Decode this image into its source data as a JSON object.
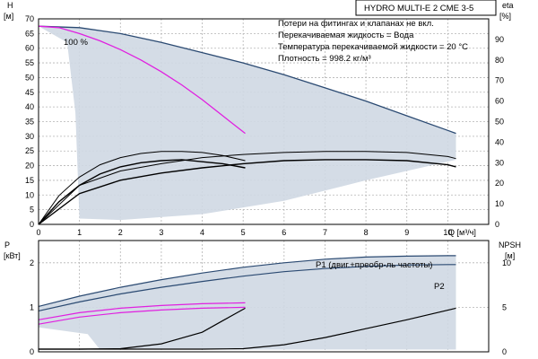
{
  "chart_data": [
    {
      "type": "line",
      "title": "HYDRO MULTI-E 2 CME 3-5",
      "notes": [
        "Потери на фитингах и клапанах не вкл.",
        "Перекачиваемая жидкость = Вода",
        "Температура перекачиваемой жидкости = 20 °C",
        "Плотность = 998.2 кг/м³"
      ],
      "xlabel": "Q [м³/ч]",
      "xlim": [
        0,
        11
      ],
      "xticks": [
        0,
        1,
        2,
        3,
        4,
        5,
        6,
        7,
        8,
        9,
        10
      ],
      "ylabel_left": [
        "H",
        "[м]"
      ],
      "ylim_left": [
        0,
        70
      ],
      "yticks_left": [
        0,
        5,
        10,
        15,
        20,
        25,
        30,
        35,
        40,
        45,
        50,
        55,
        60,
        65,
        70
      ],
      "ylabel_right": [
        "eta",
        "[%]"
      ],
      "ylim_right": [
        0,
        100
      ],
      "yticks_right": [
        0,
        10,
        20,
        30,
        40,
        50,
        60,
        70,
        80,
        90
      ],
      "grid": true,
      "label_100": "100 %",
      "colors": {
        "envelope_fill": "#cfd8e3",
        "head_max": "#2b4a72",
        "head_100": "#e020e0",
        "efficiency": "#000000"
      },
      "series": [
        {
          "name": "",
          "role": "head-max",
          "x": [
            0,
            1,
            2,
            3,
            4,
            5,
            6,
            7,
            8,
            9,
            10,
            10.2
          ],
          "y": [
            67.5,
            67,
            65,
            62,
            58.5,
            55,
            51,
            46.5,
            42,
            37,
            32,
            31
          ]
        },
        {
          "name": "100 %",
          "role": "head-100",
          "x": [
            0,
            0.5,
            1,
            1.5,
            2,
            2.5,
            3,
            3.5,
            4,
            4.5,
            5,
            5.05
          ],
          "y": [
            67.5,
            67,
            65,
            62.5,
            59.5,
            56,
            52,
            47.5,
            42.5,
            37,
            31.5,
            31
          ]
        },
        {
          "name": "",
          "role": "eta-small-outer",
          "x": [
            0,
            0.5,
            1,
            1.5,
            2,
            2.5,
            3,
            3.5,
            4,
            4.5,
            5.05
          ],
          "y": [
            0,
            14,
            23,
            29,
            32.5,
            34.5,
            35.5,
            35.5,
            35,
            33.5,
            31
          ]
        },
        {
          "name": "",
          "role": "eta-small-inner",
          "x": [
            0,
            0.5,
            1,
            1.5,
            2,
            2.5,
            3,
            3.5,
            4,
            4.5,
            5.05
          ],
          "y": [
            0,
            11,
            19,
            24.5,
            28,
            30,
            31,
            31.5,
            30.5,
            29.5,
            27.5
          ]
        },
        {
          "name": "",
          "role": "eta-large-outer",
          "x": [
            0,
            1,
            2,
            3,
            4,
            5,
            6,
            7,
            8,
            9,
            10,
            10.2
          ],
          "y": [
            0,
            19,
            26,
            29.5,
            32.5,
            34,
            35,
            35.5,
            35.5,
            35,
            33,
            32
          ]
        },
        {
          "name": "",
          "role": "eta-large-inner",
          "x": [
            0,
            1,
            2,
            3,
            4,
            5,
            6,
            7,
            8,
            9,
            10,
            10.2
          ],
          "y": [
            0,
            15,
            21.5,
            25,
            27.5,
            29.5,
            31,
            31.5,
            31.5,
            31,
            29,
            28
          ]
        }
      ]
    },
    {
      "type": "line",
      "xlim": [
        0,
        11
      ],
      "ylabel_left": [
        "P",
        "[кВт]"
      ],
      "ylim_left": [
        0,
        2.5
      ],
      "yticks_left": [
        0,
        1,
        2
      ],
      "ylabel_right": [
        "NPSH",
        "[м]"
      ],
      "ylim_right": [
        0,
        12.5
      ],
      "yticks_right": [
        0,
        5,
        10
      ],
      "grid": true,
      "colors": {
        "envelope_fill": "#cfd8e3",
        "p1": "#2b4a72",
        "p2": "#2b4a72",
        "p_100": "#e020e0",
        "npsh": "#000000"
      },
      "series": [
        {
          "name": "P1 (двиг.+преобр-ль частоты)",
          "role": "p1-max",
          "x": [
            0,
            1,
            2,
            3,
            4,
            5,
            6,
            7,
            8,
            9,
            10,
            10.2
          ],
          "y": [
            1.02,
            1.25,
            1.45,
            1.62,
            1.77,
            1.9,
            2.0,
            2.08,
            2.13,
            2.15,
            2.16,
            2.16
          ]
        },
        {
          "name": "P2",
          "role": "p2-max",
          "x": [
            0,
            1,
            2,
            3,
            4,
            5,
            6,
            7,
            8,
            9,
            10,
            10.2
          ],
          "y": [
            0.92,
            1.12,
            1.3,
            1.45,
            1.58,
            1.7,
            1.8,
            1.87,
            1.92,
            1.95,
            1.96,
            1.96
          ]
        },
        {
          "name": "",
          "role": "p1-100",
          "x": [
            0,
            1,
            2,
            3,
            4,
            5.05
          ],
          "y": [
            0.72,
            0.88,
            0.98,
            1.04,
            1.08,
            1.1
          ]
        },
        {
          "name": "",
          "role": "p2-100",
          "x": [
            0,
            1,
            2,
            3,
            4,
            5.05
          ],
          "y": [
            0.62,
            0.78,
            0.88,
            0.94,
            0.98,
            1.0
          ]
        },
        {
          "name": "",
          "role": "npsh-small",
          "x": [
            0,
            1,
            2,
            3,
            4,
            4.5,
            5.05
          ],
          "y": [
            0.3,
            0.3,
            0.35,
            0.9,
            2.2,
            3.5,
            4.9
          ]
        },
        {
          "name": "",
          "role": "npsh-large",
          "x": [
            0,
            1,
            2,
            3,
            4,
            5,
            6,
            7,
            8,
            9,
            10.2
          ],
          "y": [
            0.3,
            0.3,
            0.3,
            0.3,
            0.3,
            0.35,
            0.8,
            1.6,
            2.6,
            3.6,
            4.9
          ]
        }
      ]
    }
  ]
}
